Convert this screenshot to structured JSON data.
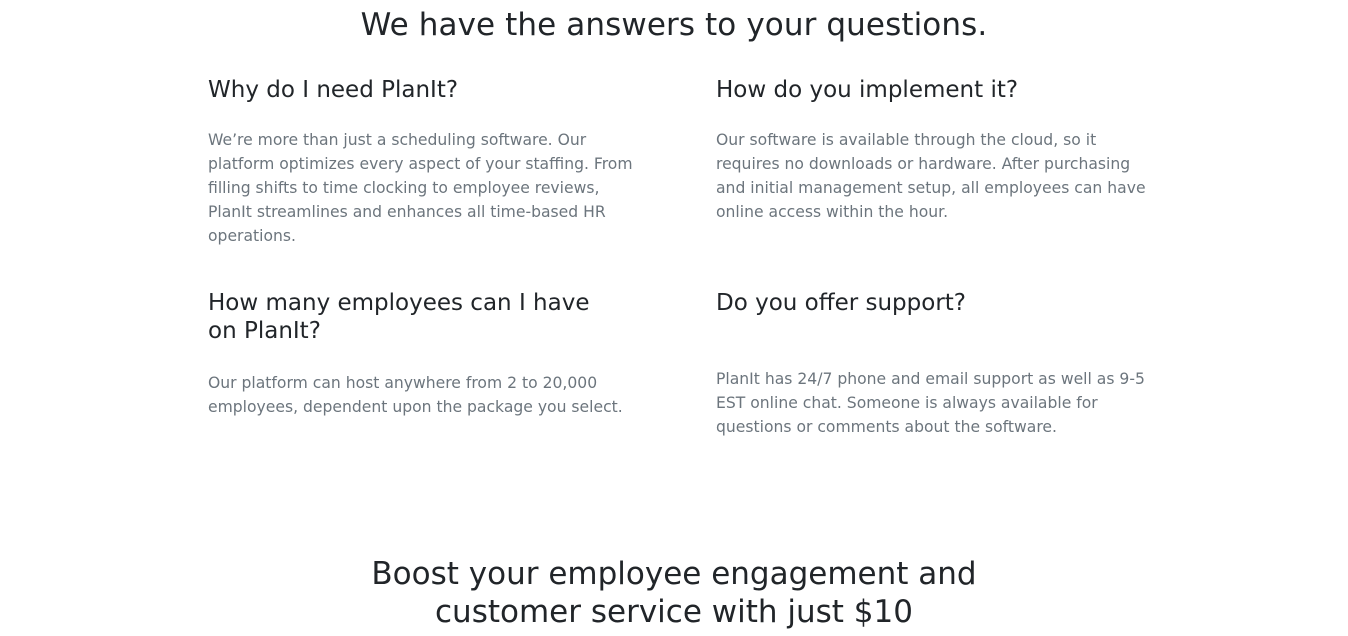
{
  "faq": {
    "title": "We have the answers to your questions.",
    "items": [
      {
        "question": "Why do I need PlanIt?",
        "answer": "We’re more than just a scheduling software. Our platform optimizes every aspect of your staffing. From filling shifts to time clocking to employee reviews, PlanIt streamlines and enhances all time-based HR operations."
      },
      {
        "question": "How do you implement it?",
        "answer": "Our software is available through the cloud, so it requires no downloads or hardware. After purchasing and initial management setup, all employees can have online access within the hour."
      },
      {
        "question": "How many employees can I have on PlanIt?",
        "answer": "Our platform can host anywhere from 2 to 20,000 employees, dependent upon the package you select."
      },
      {
        "question": "Do you offer support?",
        "answer": "PlanIt has 24/7 phone and email support as well as 9-5 EST online chat. Someone is always available for questions or comments about the software."
      }
    ]
  },
  "cta": {
    "line1": "Boost your employee engagement and",
    "line2": "customer service with just $10"
  }
}
